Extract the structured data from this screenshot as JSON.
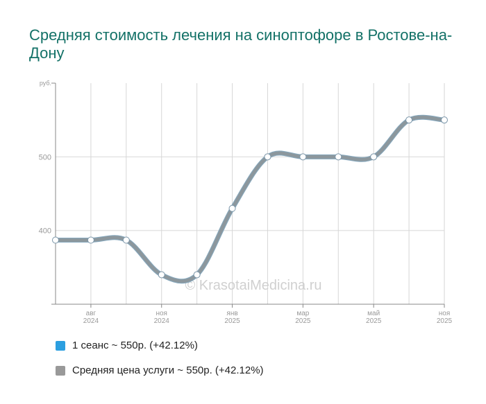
{
  "chart_data": {
    "type": "line",
    "title": "Средняя стоимость лечения на синоптофоре в Ростове-на-Дону",
    "ylabel": "руб.",
    "ylim": [
      300,
      600
    ],
    "yticks": [
      400,
      500
    ],
    "grid": true,
    "x_labels": [
      {
        "index": 1,
        "month": "авг",
        "year": "2024"
      },
      {
        "index": 3,
        "month": "ноя",
        "year": "2024"
      },
      {
        "index": 5,
        "month": "янв",
        "year": "2025"
      },
      {
        "index": 7,
        "month": "мар",
        "year": "2025"
      },
      {
        "index": 9,
        "month": "май",
        "year": "2025"
      },
      {
        "index": 11,
        "month": "ноя",
        "year": "2025"
      }
    ],
    "series": [
      {
        "name": "1 сеанс ~ 550р. (+42.12%)",
        "color": "#2c9fe0",
        "values": [
          387,
          387,
          387,
          340,
          340,
          430,
          500,
          500,
          500,
          500,
          550,
          550
        ]
      },
      {
        "name": "Средняя цена услуги ~ 550р. (+42.12%)",
        "color": "#999999",
        "values": [
          387,
          387,
          387,
          340,
          340,
          430,
          500,
          500,
          500,
          500,
          550,
          550
        ]
      }
    ],
    "legend": "bottom-left",
    "watermark": "© KrasotaiMedicina.ru"
  }
}
